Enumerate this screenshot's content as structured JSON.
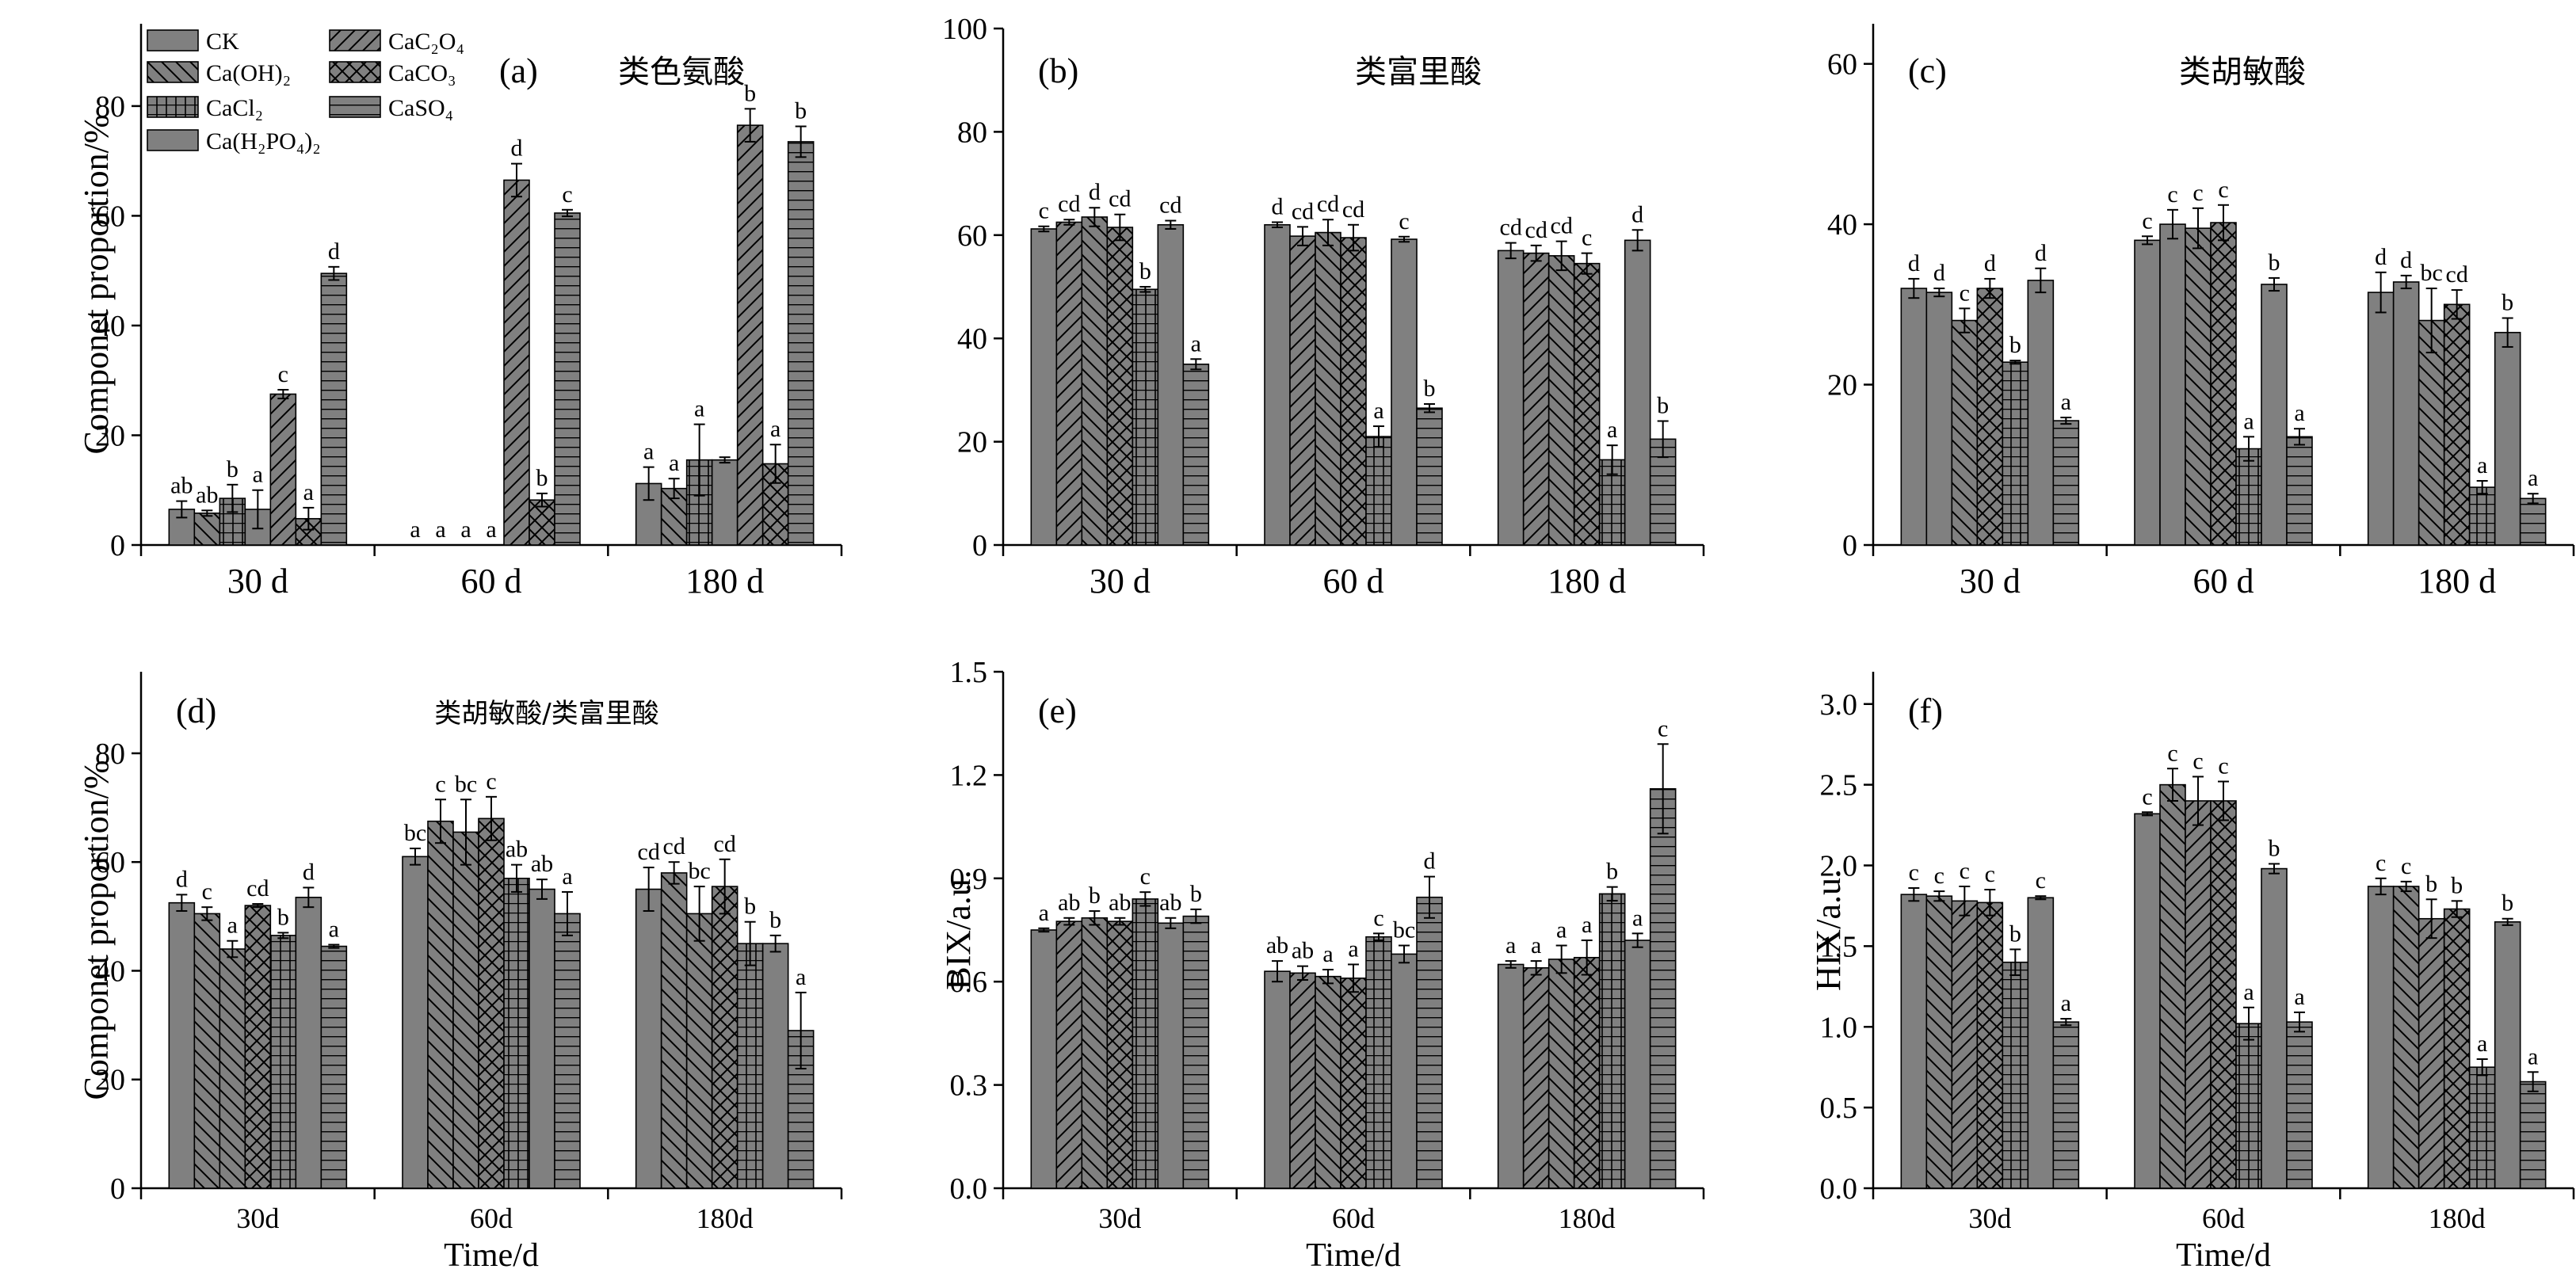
{
  "legend": {
    "items": [
      {
        "label": "CK",
        "pattern": "solid"
      },
      {
        "label": "Ca(OH)₂",
        "pattern": "back"
      },
      {
        "label": "CaCl₂",
        "pattern": "grid"
      },
      {
        "label": "Ca(H₂PO₄)₂",
        "pattern": "solid"
      },
      {
        "label": "CaC₂O₄",
        "pattern": "fwd"
      },
      {
        "label": "CaCO₃",
        "pattern": "cross"
      },
      {
        "label": "CaSO₄",
        "pattern": "vert"
      }
    ]
  },
  "chart_data": [
    {
      "type": "bar",
      "panel": "(a)",
      "title": "类色氨酸",
      "ylabel": "Componet proportion/%",
      "xlabel": "",
      "ylim": [
        0,
        95
      ],
      "yticks": [
        0,
        20,
        40,
        60,
        80
      ],
      "categories": [
        "30 d",
        "60 d",
        "180 d"
      ],
      "series_patterns": [
        "solid",
        "back",
        "grid",
        "solid",
        "fwd",
        "cross",
        "vert"
      ],
      "values": [
        [
          6.5,
          5.8,
          8.5,
          6.5,
          27.5,
          4.8,
          49.5
        ],
        [
          0,
          0,
          0,
          0,
          66.5,
          8.2,
          60.5
        ],
        [
          11.2,
          10.3,
          15.5,
          15.5,
          76.5,
          14.8,
          73.5
        ]
      ],
      "errors": [
        [
          1.5,
          0.5,
          2.5,
          3.5,
          0.8,
          2.0,
          1.2
        ],
        [
          0,
          0,
          0,
          0,
          3.0,
          1.2,
          0.6
        ],
        [
          3.0,
          1.8,
          6.5,
          0.5,
          3.0,
          3.5,
          2.8
        ]
      ],
      "letters": [
        [
          "ab",
          "ab",
          "b",
          "a",
          "c",
          "a",
          "d"
        ],
        [
          "a",
          "a",
          "a",
          "a",
          "d",
          "b",
          "c"
        ],
        [
          "a",
          "a",
          "a",
          "",
          "b",
          "a",
          "b"
        ]
      ]
    },
    {
      "type": "bar",
      "panel": "(b)",
      "title": "类富里酸",
      "ylabel": "",
      "xlabel": "",
      "ylim": [
        0,
        100
      ],
      "yticks": [
        0,
        20,
        40,
        60,
        80,
        100
      ],
      "categories": [
        "30 d",
        "60 d",
        "180 d"
      ],
      "series_patterns": [
        "solid",
        "fwd",
        "back",
        "cross",
        "grid",
        "solid",
        "vert"
      ],
      "values": [
        [
          61.2,
          62.5,
          63.5,
          61.5,
          49.5,
          62.0,
          35.0
        ],
        [
          62.0,
          59.8,
          60.5,
          59.5,
          21.0,
          59.2,
          26.5
        ],
        [
          57.0,
          56.5,
          56.0,
          54.5,
          16.5,
          59.0,
          20.5
        ]
      ],
      "errors": [
        [
          0.5,
          0.5,
          1.8,
          2.5,
          0.5,
          0.8,
          1.0
        ],
        [
          0.5,
          1.8,
          2.5,
          2.5,
          2.0,
          0.5,
          0.8
        ],
        [
          1.5,
          1.5,
          2.8,
          2.0,
          2.8,
          2.0,
          3.5
        ]
      ],
      "letters": [
        [
          "c",
          "cd",
          "d",
          "cd",
          "b",
          "cd",
          "a"
        ],
        [
          "d",
          "cd",
          "cd",
          "cd",
          "a",
          "c",
          "b"
        ],
        [
          "cd",
          "cd",
          "cd",
          "c",
          "a",
          "d",
          "b"
        ]
      ]
    },
    {
      "type": "bar",
      "panel": "(c)",
      "title": "类胡敏酸",
      "ylabel": "",
      "xlabel": "",
      "ylim": [
        0,
        65
      ],
      "yticks": [
        0,
        20,
        40,
        60
      ],
      "categories": [
        "30 d",
        "60 d",
        "180 d"
      ],
      "series_patterns": [
        "solid",
        "solid",
        "back",
        "cross",
        "grid",
        "solid",
        "vert"
      ],
      "values": [
        [
          32.0,
          31.5,
          28.0,
          32.0,
          22.8,
          33.0,
          15.5
        ],
        [
          38.0,
          40.0,
          39.5,
          40.2,
          12.0,
          32.5,
          13.5
        ],
        [
          31.5,
          32.8,
          28.0,
          30.0,
          7.2,
          26.5,
          5.8
        ]
      ],
      "errors": [
        [
          1.2,
          0.5,
          1.5,
          1.2,
          0.2,
          1.5,
          0.4
        ],
        [
          0.5,
          1.8,
          2.5,
          2.2,
          1.5,
          0.8,
          1.0
        ],
        [
          2.5,
          0.8,
          4.0,
          1.8,
          0.8,
          1.8,
          0.6
        ]
      ],
      "letters": [
        [
          "d",
          "d",
          "c",
          "d",
          "b",
          "d",
          "a"
        ],
        [
          "c",
          "c",
          "c",
          "c",
          "a",
          "b",
          "a"
        ],
        [
          "d",
          "d",
          "bc",
          "cd",
          "a",
          "b",
          "a"
        ]
      ]
    },
    {
      "type": "bar",
      "panel": "(d)",
      "title": "类胡敏酸/类富里酸",
      "ylabel": "Componet proportion/%",
      "xlabel": "Time/d",
      "ylim": [
        0,
        95
      ],
      "yticks": [
        0,
        20,
        40,
        60,
        80
      ],
      "categories": [
        "30d",
        "60d",
        "180d"
      ],
      "series_patterns": [
        "solid",
        "back",
        "back",
        "cross",
        "grid",
        "solid",
        "vert"
      ],
      "values": [
        [
          52.5,
          50.5,
          44.0,
          52.0,
          46.5,
          53.5,
          44.5
        ],
        [
          61.0,
          67.5,
          65.5,
          68.0,
          57.0,
          55.0,
          50.5
        ],
        [
          55.0,
          58.0,
          50.5,
          55.5,
          45.0,
          45.0,
          29.0
        ]
      ],
      "errors": [
        [
          1.5,
          1.2,
          1.5,
          0.3,
          0.5,
          1.8,
          0.3
        ],
        [
          1.5,
          4.0,
          6.0,
          4.0,
          2.5,
          1.8,
          4.0
        ],
        [
          4.0,
          2.0,
          5.0,
          5.0,
          4.0,
          1.5,
          7.0
        ]
      ],
      "letters": [
        [
          "d",
          "c",
          "a",
          "cd",
          "b",
          "d",
          "a"
        ],
        [
          "bc",
          "c",
          "bc",
          "c",
          "ab",
          "ab",
          "a"
        ],
        [
          "cd",
          "cd",
          "bc",
          "cd",
          "b",
          "b",
          "a"
        ]
      ]
    },
    {
      "type": "bar",
      "panel": "(e)",
      "title": "",
      "ylabel": "BIX/a.u.",
      "xlabel": "Time/d",
      "ylim": [
        0,
        1.5
      ],
      "yticks": [
        0.0,
        0.3,
        0.6,
        0.9,
        1.2,
        1.5
      ],
      "categories": [
        "30d",
        "60d",
        "180d"
      ],
      "series_patterns": [
        "solid",
        "fwd",
        "back",
        "cross",
        "grid",
        "solid",
        "vert"
      ],
      "values": [
        [
          0.75,
          0.775,
          0.785,
          0.775,
          0.84,
          0.77,
          0.79
        ],
        [
          0.63,
          0.625,
          0.615,
          0.61,
          0.73,
          0.68,
          0.845
        ],
        [
          0.65,
          0.64,
          0.665,
          0.67,
          0.855,
          0.72,
          1.16
        ]
      ],
      "errors": [
        [
          0.005,
          0.01,
          0.02,
          0.01,
          0.02,
          0.015,
          0.02
        ],
        [
          0.03,
          0.02,
          0.02,
          0.04,
          0.01,
          0.025,
          0.06
        ],
        [
          0.01,
          0.02,
          0.04,
          0.05,
          0.02,
          0.02,
          0.13
        ]
      ],
      "letters": [
        [
          "a",
          "ab",
          "b",
          "ab",
          "c",
          "ab",
          "b"
        ],
        [
          "ab",
          "ab",
          "a",
          "a",
          "c",
          "bc",
          "d"
        ],
        [
          "a",
          "a",
          "a",
          "a",
          "b",
          "a",
          "c"
        ]
      ]
    },
    {
      "type": "bar",
      "panel": "(f)",
      "title": "",
      "ylabel": "HIX/a.u.",
      "xlabel": "Time/d",
      "ylim": [
        0,
        3.2
      ],
      "yticks": [
        0.0,
        0.5,
        1.0,
        1.5,
        2.0,
        2.5,
        3.0
      ],
      "categories": [
        "30d",
        "60d",
        "180d"
      ],
      "series_patterns": [
        "solid",
        "back",
        "fwd",
        "cross",
        "grid",
        "solid",
        "vert"
      ],
      "values": [
        [
          1.82,
          1.81,
          1.78,
          1.77,
          1.4,
          1.8,
          1.03
        ],
        [
          2.32,
          2.5,
          2.4,
          2.4,
          1.02,
          1.98,
          1.03
        ],
        [
          1.87,
          1.87,
          1.67,
          1.73,
          0.75,
          1.65,
          0.66
        ]
      ],
      "errors": [
        [
          0.04,
          0.03,
          0.09,
          0.08,
          0.08,
          0.01,
          0.02
        ],
        [
          0.01,
          0.1,
          0.15,
          0.12,
          0.1,
          0.03,
          0.06
        ],
        [
          0.05,
          0.03,
          0.12,
          0.05,
          0.05,
          0.02,
          0.06
        ]
      ],
      "letters": [
        [
          "c",
          "c",
          "c",
          "c",
          "b",
          "c",
          "a"
        ],
        [
          "c",
          "c",
          "c",
          "c",
          "a",
          "b",
          "a"
        ],
        [
          "c",
          "c",
          "b",
          "b",
          "a",
          "b",
          "a"
        ]
      ]
    }
  ]
}
